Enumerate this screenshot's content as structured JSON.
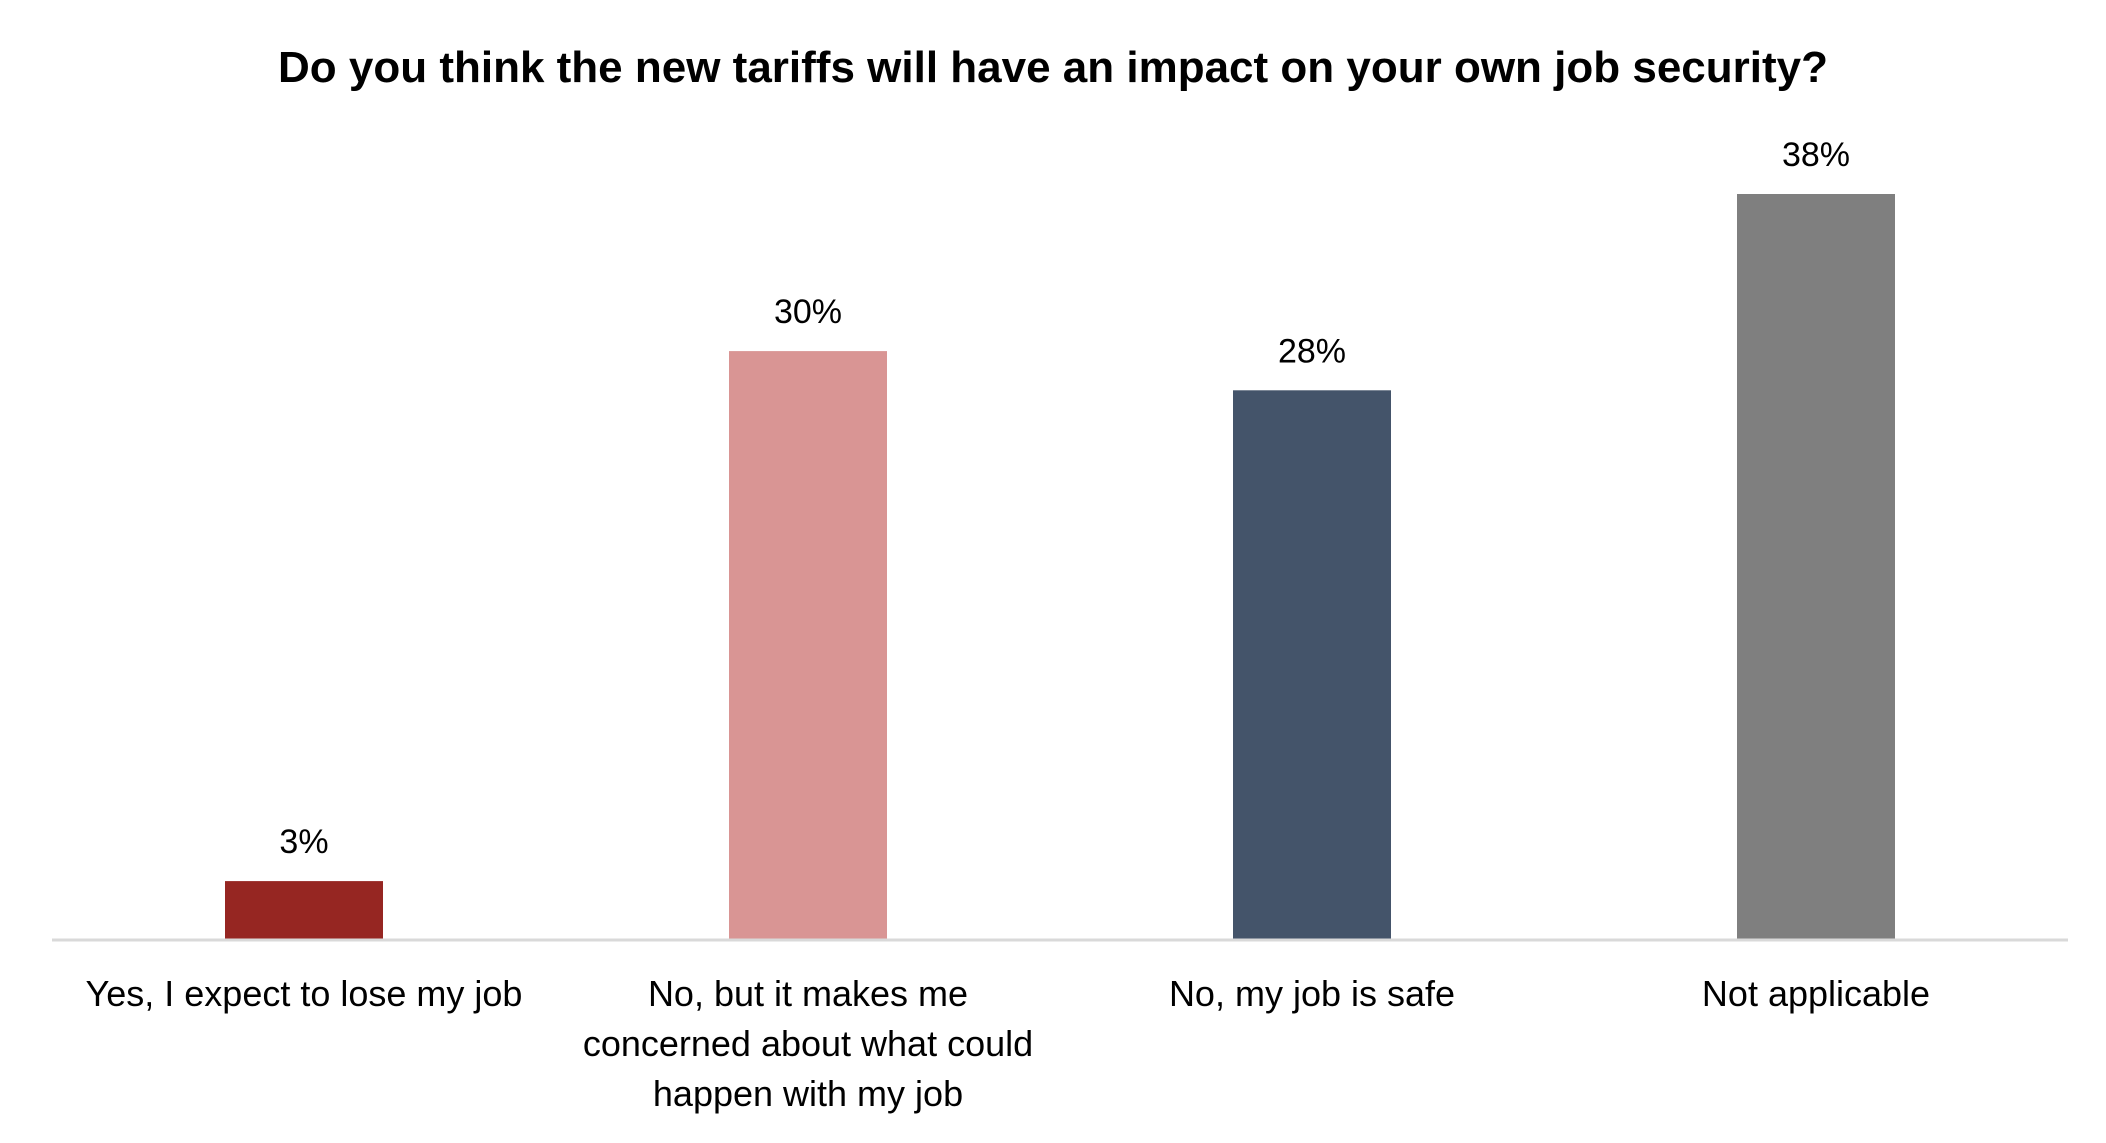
{
  "chart_data": {
    "type": "bar",
    "title": "Do you think the new tariffs will have an impact on your own job security?",
    "categories": [
      "Yes, I expect to lose my job",
      "No, but it makes me concerned about what could happen with my job",
      "No, my job is safe",
      "Not applicable"
    ],
    "category_label_lines": [
      [
        "Yes, I expect to lose my job"
      ],
      [
        "No, but it makes me",
        "concerned about what could",
        "happen with my job"
      ],
      [
        "No, my job is safe"
      ],
      [
        "Not applicable"
      ]
    ],
    "values": [
      3,
      30,
      28,
      38
    ],
    "data_labels": [
      "3%",
      "30%",
      "28%",
      "38%"
    ],
    "bar_colors": [
      "#962622",
      "#D99594",
      "#44546A",
      "#7F7F7F"
    ],
    "ylim": [
      0,
      38
    ],
    "grid": false,
    "legend": "none",
    "xlabel": "",
    "ylabel": ""
  }
}
